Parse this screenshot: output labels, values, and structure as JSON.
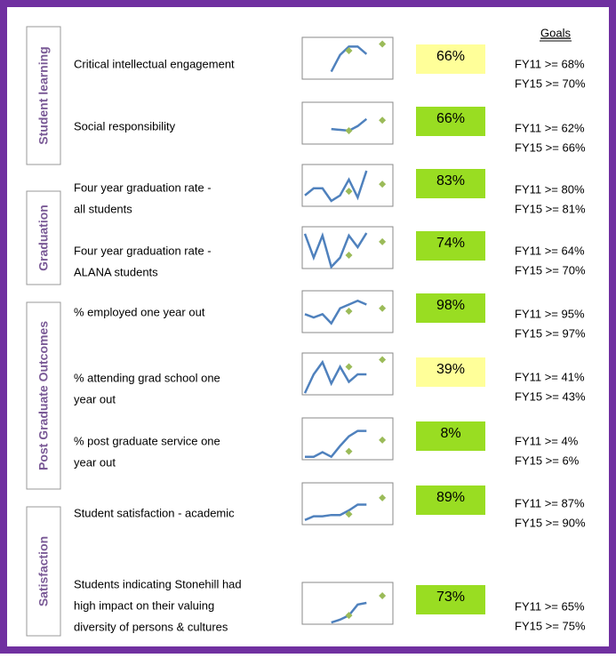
{
  "header": {
    "goals": "Goals"
  },
  "groups": [
    {
      "name": "Student learning",
      "rows": [
        {
          "label": [
            "Critical intellectual engagement"
          ],
          "value": "66%",
          "color": "#ffff99",
          "goals": [
            "FY11 >= 68%",
            "FY15 >= 70%"
          ],
          "trend": [
            null,
            null,
            null,
            18,
            58,
            78,
            78,
            60
          ],
          "markers": [
            68,
            84
          ]
        },
        {
          "label": [
            "Social responsibility"
          ],
          "value": "66%",
          "color": "#99dd22",
          "goals": [
            "FY11 >= 62%",
            "FY15 >= 66%"
          ],
          "trend": [
            null,
            null,
            null,
            36,
            34,
            32,
            43,
            60
          ],
          "markers": [
            32,
            57
          ]
        }
      ]
    },
    {
      "name": "Graduation",
      "rows": [
        {
          "label": [
            "Four year graduation rate -",
            "all students"
          ],
          "value": "83%",
          "color": "#99dd22",
          "goals": [
            "FY11 >= 80%",
            "FY15 >= 81%"
          ],
          "trend": [
            26,
            43,
            43,
            13,
            26,
            64,
            21,
            85
          ],
          "markers": [
            36,
            53
          ]
        },
        {
          "label": [
            "Four year graduation rate -",
            "ALANA students"
          ],
          "value": "74%",
          "color": "#99dd22",
          "goals": [
            "FY11 >= 64%",
            "FY15 >= 70%"
          ],
          "trend": [
            83,
            26,
            79,
            4,
            26,
            79,
            51,
            85
          ],
          "markers": [
            32,
            64
          ]
        }
      ]
    },
    {
      "name": "Post Graduate Outcomes",
      "rows": [
        {
          "label": [
            "% employed one year out"
          ],
          "value": "98%",
          "color": "#99dd22",
          "goals": [
            "FY11 >= 95%",
            "FY15 >= 97%"
          ],
          "trend": [
            44,
            36,
            44,
            22,
            58,
            67,
            76,
            67
          ],
          "markers": [
            51,
            58
          ]
        },
        {
          "label": [
            "% attending grad school one",
            "year out"
          ],
          "value": "39%",
          "color": "#ffff99",
          "goals": [
            "FY11 >= 41%",
            "FY15 >= 43%"
          ],
          "trend": [
            4,
            49,
            78,
            27,
            67,
            31,
            49,
            49
          ],
          "markers": [
            67,
            84
          ]
        },
        {
          "label": [
            "% post graduate service one",
            "year out"
          ],
          "value": "8%",
          "color": "#99dd22",
          "goals": [
            "FY11 >= 4%",
            "FY15 >= 6%"
          ],
          "trend": [
            7,
            7,
            18,
            7,
            33,
            56,
            69,
            69
          ],
          "markers": [
            20,
            47
          ]
        }
      ]
    },
    {
      "name": "Satisfaction",
      "rows": [
        {
          "label": [
            "Student satisfaction - academic"
          ],
          "value": "89%",
          "color": "#99dd22",
          "goals": [
            "FY11 >= 87%",
            "FY15 >= 90%"
          ],
          "trend": [
            11,
            20,
            20,
            23,
            23,
            34,
            48,
            48
          ],
          "markers": [
            25,
            64
          ]
        },
        {
          "label": [
            "Students indicating Stonehill had",
            "high impact on their valuing",
            "diversity of persons & cultures"
          ],
          "value": "73%",
          "color": "#99dd22",
          "goals": [
            "FY11 >= 65%",
            "FY15 >= 75%"
          ],
          "trend": [
            null,
            null,
            null,
            4,
            11,
            21,
            47,
            51
          ],
          "markers": [
            21,
            68
          ]
        }
      ]
    }
  ]
}
